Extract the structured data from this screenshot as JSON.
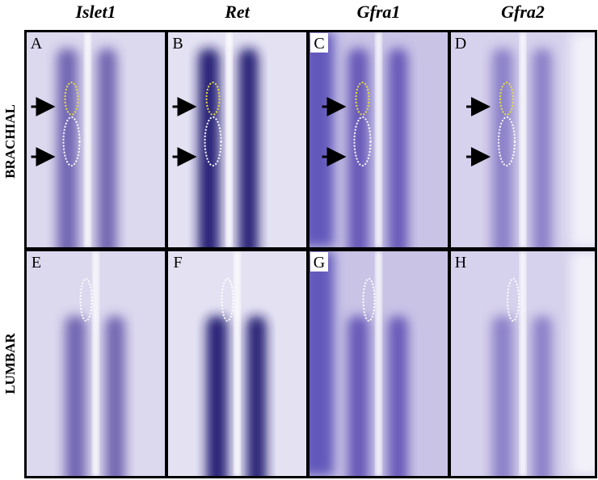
{
  "columns": [
    "Islet1",
    "Ret",
    "Gfra1",
    "Gfra2"
  ],
  "rows": [
    "BRACHIAL",
    "LUMBAR"
  ],
  "panels": [
    {
      "label": "A"
    },
    {
      "label": "B"
    },
    {
      "label": "C"
    },
    {
      "label": "D"
    },
    {
      "label": "E"
    },
    {
      "label": "F"
    },
    {
      "label": "G"
    },
    {
      "label": "H"
    }
  ]
}
